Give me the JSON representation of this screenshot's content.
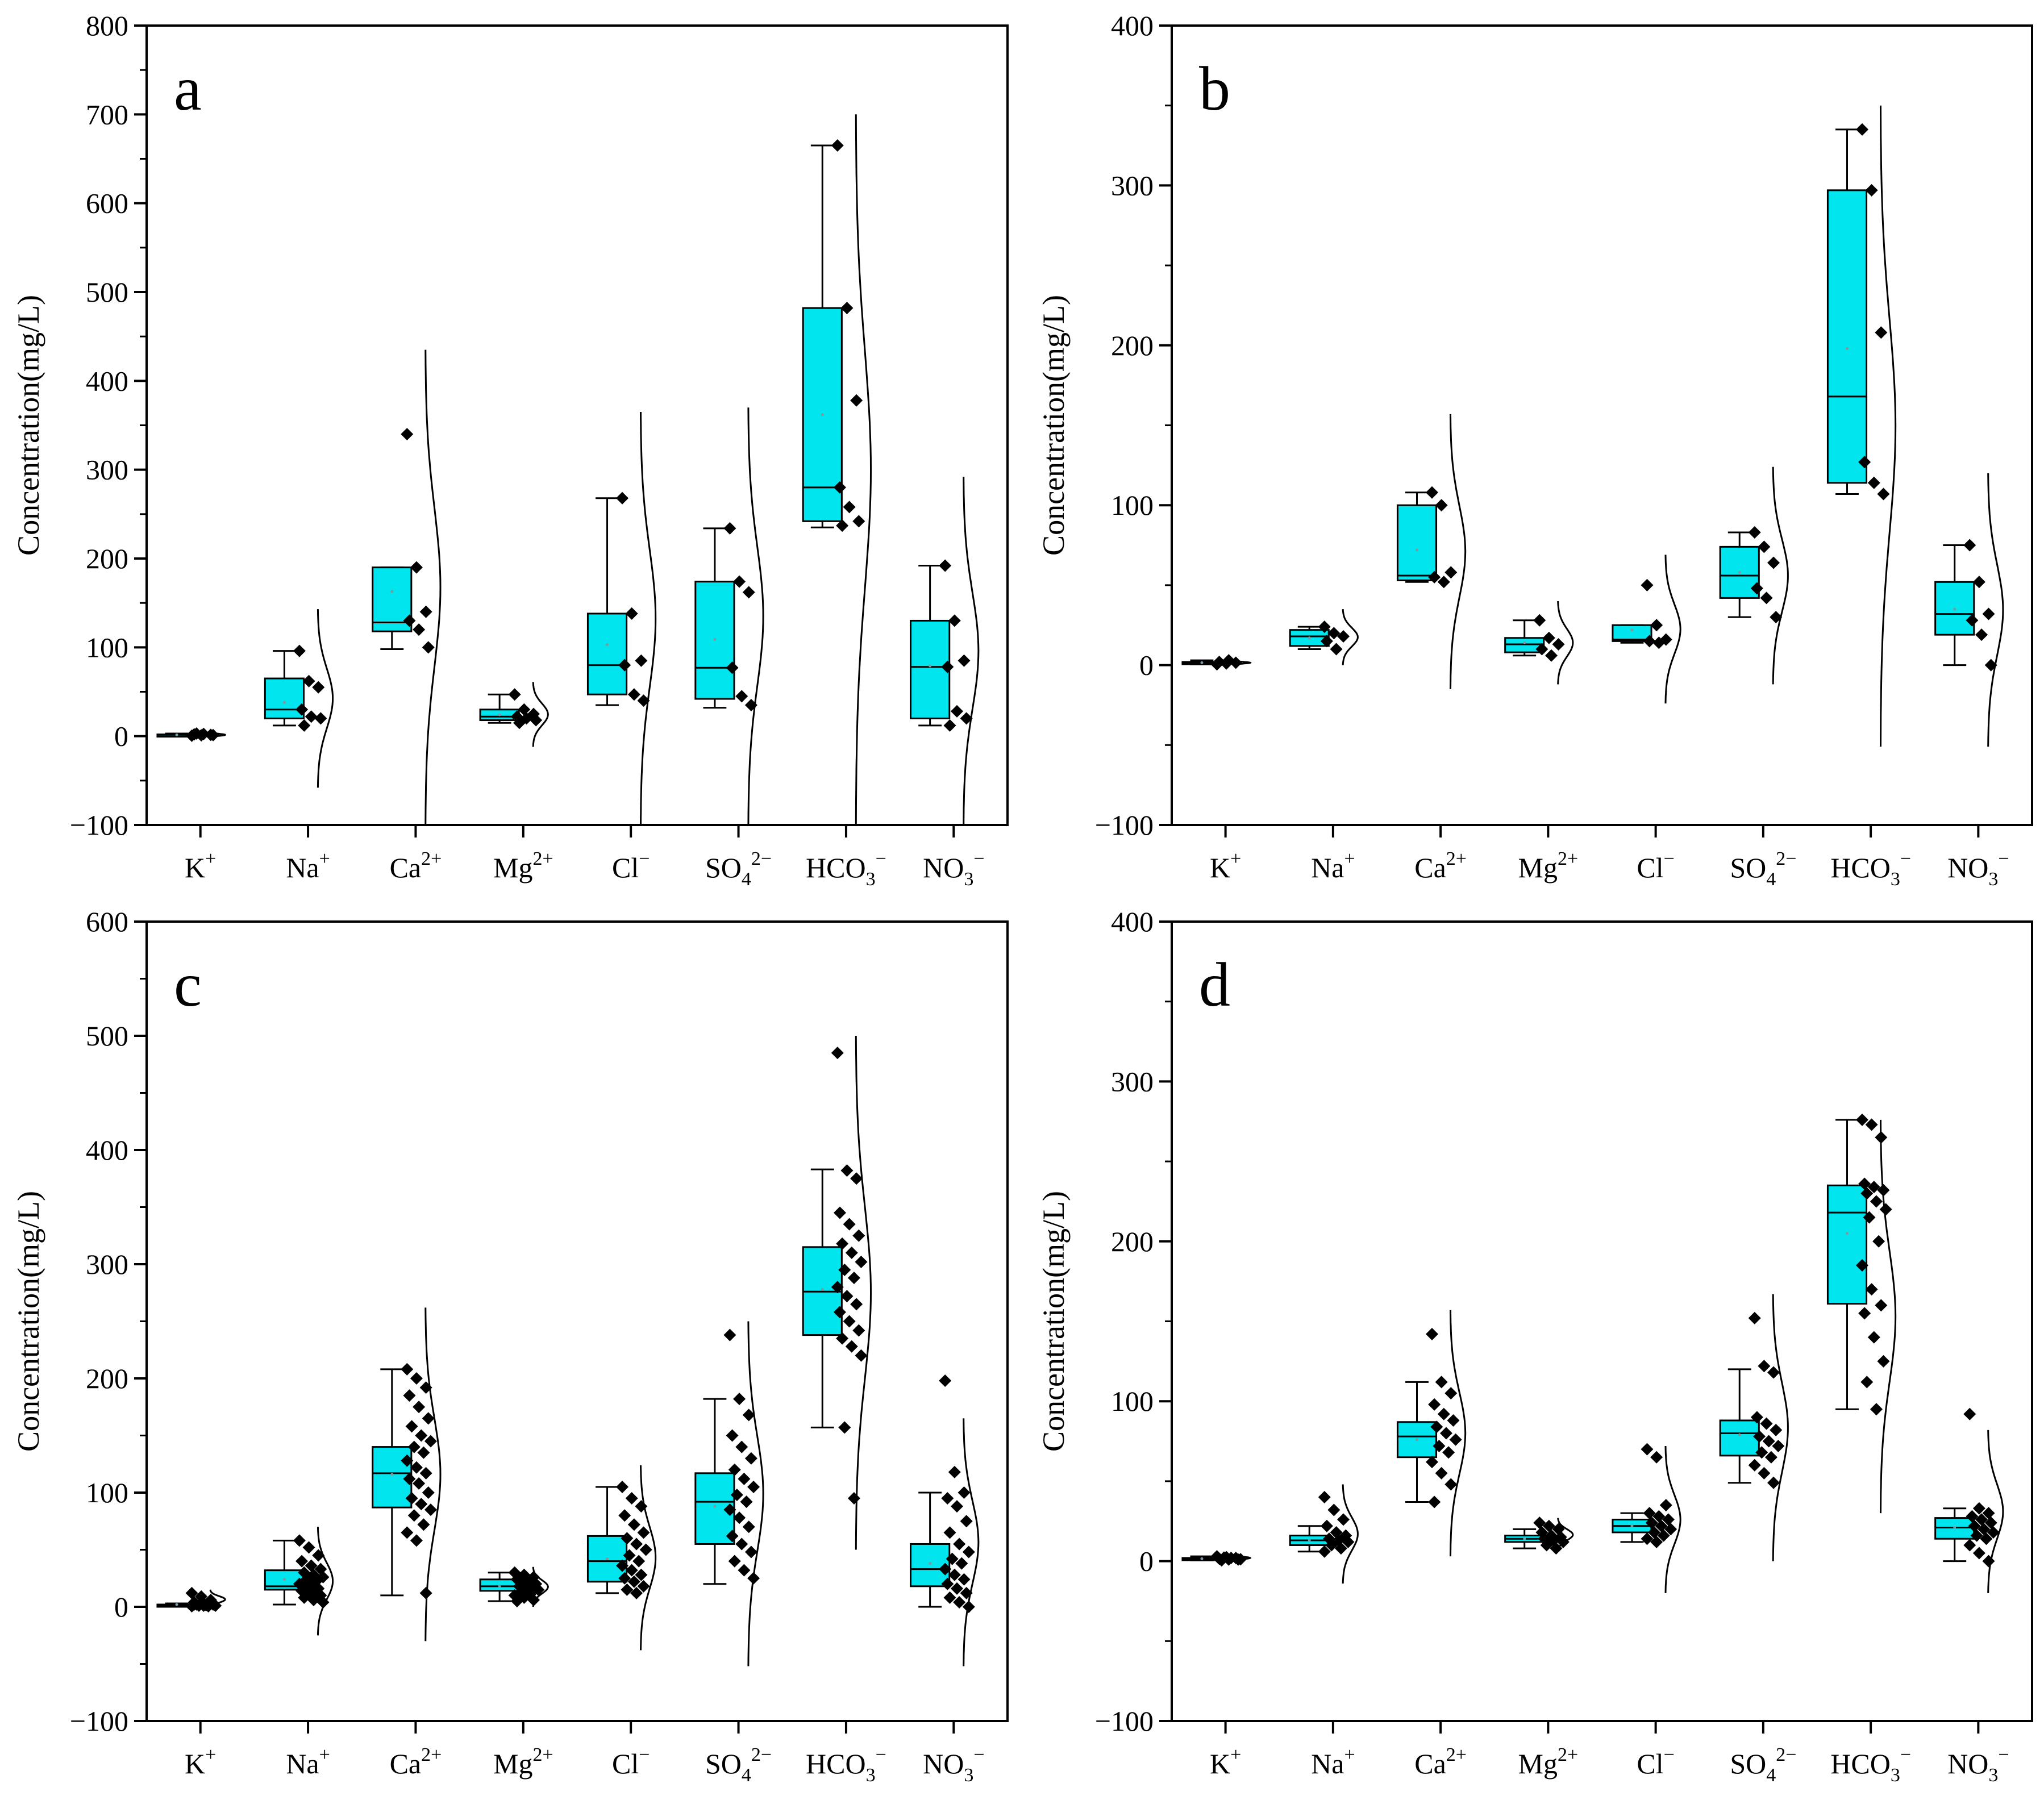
{
  "chart_data": [
    {
      "type": "box",
      "panel_label": "a",
      "ylabel": "Concentration(mg/L)",
      "ylim": [
        -100,
        800
      ],
      "yticks": [
        -100,
        0,
        100,
        200,
        300,
        400,
        500,
        600,
        700,
        800
      ],
      "categories": [
        {
          "base": "K",
          "sup": "+"
        },
        {
          "base": "Na",
          "sup": "+"
        },
        {
          "base": "Ca",
          "sup": "2+"
        },
        {
          "base": "Mg",
          "sup": "2+"
        },
        {
          "base": "Cl",
          "sup": "−"
        },
        {
          "base": "SO",
          "sub": "4",
          "sup": "2−"
        },
        {
          "base": "HCO",
          "sub": "3",
          "sup": "−"
        },
        {
          "base": "NO",
          "sub": "3",
          "sup": "−"
        }
      ],
      "boxes": [
        {
          "min": 0.5,
          "q1": 1,
          "median": 1.5,
          "q3": 2,
          "max": 3,
          "mean": 1.5,
          "points": [
            0.5,
            1,
            1.5,
            2,
            2.5,
            1.2,
            3
          ],
          "dist_min": -2,
          "dist_max": 5
        },
        {
          "min": 12,
          "q1": 20,
          "median": 30,
          "q3": 65,
          "max": 96,
          "mean": 38,
          "points": [
            96,
            62,
            55,
            30,
            22,
            20,
            12
          ],
          "dist_min": -58,
          "dist_max": 143
        },
        {
          "min": 98,
          "q1": 118,
          "median": 128,
          "q3": 190,
          "max": 190,
          "mean": 163,
          "points": [
            340,
            190,
            140,
            130,
            120,
            100
          ],
          "dist_min": -100,
          "dist_max": 435
        },
        {
          "min": 15,
          "q1": 18,
          "median": 22,
          "q3": 30,
          "max": 47,
          "mean": 24,
          "points": [
            47,
            30,
            25,
            22,
            20,
            18,
            15
          ],
          "dist_min": -12,
          "dist_max": 61
        },
        {
          "min": 35,
          "q1": 47,
          "median": 80,
          "q3": 138,
          "max": 268,
          "mean": 103,
          "points": [
            268,
            138,
            85,
            80,
            47,
            40
          ],
          "dist_min": -100,
          "dist_max": 365
        },
        {
          "min": 32,
          "q1": 42,
          "median": 77,
          "q3": 174,
          "max": 234,
          "mean": 109,
          "points": [
            234,
            174,
            162,
            77,
            45,
            35
          ],
          "dist_min": -100,
          "dist_max": 370
        },
        {
          "min": 235,
          "q1": 242,
          "median": 280,
          "q3": 482,
          "max": 665,
          "mean": 362,
          "points": [
            665,
            482,
            378,
            280,
            258,
            242,
            237
          ],
          "dist_min": -100,
          "dist_max": 700
        },
        {
          "min": 12,
          "q1": 20,
          "median": 78,
          "q3": 130,
          "max": 192,
          "mean": 79,
          "points": [
            192,
            130,
            85,
            78,
            28,
            20,
            12
          ],
          "dist_min": -100,
          "dist_max": 292
        }
      ]
    },
    {
      "type": "box",
      "panel_label": "b",
      "ylabel": "Concentration(mg/L)",
      "ylim": [
        -100,
        400
      ],
      "yticks": [
        -100,
        0,
        100,
        200,
        300,
        400
      ],
      "categories": [
        {
          "base": "K",
          "sup": "+"
        },
        {
          "base": "Na",
          "sup": "+"
        },
        {
          "base": "Ca",
          "sup": "2+"
        },
        {
          "base": "Mg",
          "sup": "2+"
        },
        {
          "base": "Cl",
          "sup": "−"
        },
        {
          "base": "SO",
          "sub": "4",
          "sup": "2−"
        },
        {
          "base": "HCO",
          "sub": "3",
          "sup": "−"
        },
        {
          "base": "NO",
          "sub": "3",
          "sup": "−"
        }
      ],
      "boxes": [
        {
          "min": 0.5,
          "q1": 1,
          "median": 1.5,
          "q3": 2,
          "max": 3,
          "mean": 1.5,
          "points": [
            0.5,
            1,
            1.5,
            2,
            3
          ],
          "dist_min": 0,
          "dist_max": 3
        },
        {
          "min": 10,
          "q1": 12,
          "median": 18,
          "q3": 22,
          "max": 24,
          "mean": 17,
          "points": [
            24,
            20,
            18,
            15,
            10
          ],
          "dist_min": 0,
          "dist_max": 35
        },
        {
          "min": 52,
          "q1": 53,
          "median": 56,
          "q3": 100,
          "max": 108,
          "mean": 72,
          "points": [
            108,
            100,
            58,
            55,
            52
          ],
          "dist_min": -15,
          "dist_max": 157
        },
        {
          "min": 6,
          "q1": 8,
          "median": 13,
          "q3": 17,
          "max": 28,
          "mean": 14,
          "points": [
            28,
            17,
            13,
            10,
            6
          ],
          "dist_min": -12,
          "dist_max": 40
        },
        {
          "min": 14,
          "q1": 15,
          "median": 16,
          "q3": 25,
          "max": 25,
          "mean": 22,
          "points": [
            50,
            25,
            16,
            15,
            14
          ],
          "dist_min": -24,
          "dist_max": 69
        },
        {
          "min": 30,
          "q1": 42,
          "median": 56,
          "q3": 74,
          "max": 83,
          "mean": 58,
          "points": [
            83,
            74,
            64,
            48,
            42,
            30
          ],
          "dist_min": -12,
          "dist_max": 124
        },
        {
          "min": 107,
          "q1": 114,
          "median": 168,
          "q3": 297,
          "max": 335,
          "mean": 198,
          "points": [
            335,
            297,
            208,
            127,
            114,
            107
          ],
          "dist_min": -51,
          "dist_max": 350
        },
        {
          "min": 0,
          "q1": 19,
          "median": 32,
          "q3": 52,
          "max": 75,
          "mean": 35,
          "points": [
            75,
            52,
            32,
            28,
            19,
            0
          ],
          "dist_min": -51,
          "dist_max": 120
        }
      ]
    },
    {
      "type": "box",
      "panel_label": "c",
      "ylabel": "Concentration(mg/L)",
      "ylim": [
        -100,
        600
      ],
      "yticks": [
        -100,
        0,
        100,
        200,
        300,
        400,
        500,
        600
      ],
      "categories": [
        {
          "base": "K",
          "sup": "+"
        },
        {
          "base": "Na",
          "sup": "+"
        },
        {
          "base": "Ca",
          "sup": "2+"
        },
        {
          "base": "Mg",
          "sup": "2+"
        },
        {
          "base": "Cl",
          "sup": "−"
        },
        {
          "base": "SO",
          "sub": "4",
          "sup": "2−"
        },
        {
          "base": "HCO",
          "sub": "3",
          "sup": "−"
        },
        {
          "base": "NO",
          "sub": "3",
          "sup": "−"
        }
      ],
      "boxes": [
        {
          "min": 0.5,
          "q1": 1,
          "median": 1.5,
          "q3": 2,
          "max": 3,
          "mean": 2,
          "points": [
            12,
            9,
            6,
            4,
            3,
            2,
            2,
            1.5,
            1,
            1,
            0.5,
            0.5,
            3,
            5,
            2,
            1
          ],
          "dist_min": -2,
          "dist_max": 15
        },
        {
          "min": 2,
          "q1": 15,
          "median": 18,
          "q3": 32,
          "max": 58,
          "mean": 24,
          "points": [
            58,
            52,
            45,
            40,
            36,
            33,
            30,
            28,
            26,
            24,
            22,
            20,
            18,
            16,
            14,
            12,
            10,
            8,
            6,
            4
          ],
          "dist_min": -25,
          "dist_max": 70
        },
        {
          "min": 10,
          "q1": 87,
          "median": 117,
          "q3": 140,
          "max": 208,
          "mean": 116,
          "points": [
            208,
            200,
            192,
            185,
            175,
            165,
            158,
            150,
            145,
            140,
            135,
            128,
            122,
            117,
            112,
            108,
            100,
            95,
            90,
            85,
            80,
            72,
            65,
            58,
            12
          ],
          "dist_min": -30,
          "dist_max": 262
        },
        {
          "min": 5,
          "q1": 14,
          "median": 18,
          "q3": 24,
          "max": 30,
          "mean": 18,
          "points": [
            30,
            28,
            26,
            24,
            22,
            20,
            18,
            17,
            15,
            14,
            12,
            10,
            8,
            6,
            5
          ],
          "dist_min": 0,
          "dist_max": 35
        },
        {
          "min": 12,
          "q1": 22,
          "median": 40,
          "q3": 62,
          "max": 105,
          "mean": 42,
          "points": [
            105,
            95,
            88,
            80,
            72,
            65,
            60,
            55,
            50,
            45,
            40,
            36,
            32,
            28,
            25,
            22,
            18,
            15,
            12
          ],
          "dist_min": -38,
          "dist_max": 124
        },
        {
          "min": 20,
          "q1": 55,
          "median": 92,
          "q3": 117,
          "max": 182,
          "mean": 88,
          "points": [
            238,
            182,
            168,
            150,
            140,
            130,
            120,
            112,
            105,
            98,
            92,
            85,
            78,
            70,
            62,
            55,
            48,
            40,
            32,
            25
          ],
          "dist_min": -52,
          "dist_max": 250
        },
        {
          "min": 157,
          "q1": 238,
          "median": 276,
          "q3": 315,
          "max": 383,
          "mean": 278,
          "points": [
            485,
            382,
            375,
            345,
            335,
            325,
            318,
            310,
            302,
            295,
            288,
            280,
            272,
            265,
            258,
            250,
            242,
            235,
            228,
            220,
            157,
            95
          ],
          "dist_min": 50,
          "dist_max": 500
        },
        {
          "min": 0,
          "q1": 18,
          "median": 33,
          "q3": 55,
          "max": 100,
          "mean": 38,
          "points": [
            198,
            118,
            100,
            95,
            88,
            75,
            65,
            55,
            48,
            42,
            38,
            33,
            28,
            24,
            20,
            16,
            12,
            8,
            4,
            0
          ],
          "dist_min": -52,
          "dist_max": 165
        }
      ]
    },
    {
      "type": "box",
      "panel_label": "d",
      "ylabel": "Concentration(mg/L)",
      "ylim": [
        -100,
        400
      ],
      "yticks": [
        -100,
        0,
        100,
        200,
        300,
        400
      ],
      "categories": [
        {
          "base": "K",
          "sup": "+"
        },
        {
          "base": "Na",
          "sup": "+"
        },
        {
          "base": "Ca",
          "sup": "2+"
        },
        {
          "base": "Mg",
          "sup": "2+"
        },
        {
          "base": "Cl",
          "sup": "−"
        },
        {
          "base": "SO",
          "sub": "4",
          "sup": "2−"
        },
        {
          "base": "HCO",
          "sub": "3",
          "sup": "−"
        },
        {
          "base": "NO",
          "sub": "3",
          "sup": "−"
        }
      ],
      "boxes": [
        {
          "min": 0.5,
          "q1": 1,
          "median": 1.5,
          "q3": 2,
          "max": 3,
          "mean": 1.5,
          "points": [
            3,
            2.5,
            2,
            1.5,
            1,
            1,
            0.5,
            2,
            1.2,
            2.2
          ],
          "dist_min": 0,
          "dist_max": 4
        },
        {
          "min": 6,
          "q1": 10,
          "median": 13,
          "q3": 16,
          "max": 22,
          "mean": 13,
          "points": [
            40,
            32,
            26,
            22,
            18,
            16,
            14,
            13,
            12,
            10,
            8,
            6
          ],
          "dist_min": -14,
          "dist_max": 48
        },
        {
          "min": 37,
          "q1": 65,
          "median": 78,
          "q3": 87,
          "max": 112,
          "mean": 76,
          "points": [
            142,
            112,
            105,
            98,
            92,
            88,
            84,
            80,
            76,
            72,
            68,
            62,
            55,
            48,
            37
          ],
          "dist_min": 3,
          "dist_max": 157
        },
        {
          "min": 8,
          "q1": 12,
          "median": 14,
          "q3": 16,
          "max": 20,
          "mean": 14,
          "points": [
            24,
            22,
            20,
            18,
            16,
            15,
            14,
            13,
            12,
            10,
            8
          ],
          "dist_min": 6,
          "dist_max": 27
        },
        {
          "min": 12,
          "q1": 18,
          "median": 22,
          "q3": 26,
          "max": 30,
          "mean": 22,
          "points": [
            70,
            65,
            35,
            30,
            28,
            26,
            24,
            22,
            20,
            18,
            16,
            14,
            12
          ],
          "dist_min": -20,
          "dist_max": 72
        },
        {
          "min": 49,
          "q1": 66,
          "median": 80,
          "q3": 88,
          "max": 120,
          "mean": 79,
          "points": [
            152,
            122,
            118,
            90,
            86,
            82,
            78,
            75,
            72,
            68,
            65,
            60,
            55,
            49
          ],
          "dist_min": 0,
          "dist_max": 167
        },
        {
          "min": 95,
          "q1": 161,
          "median": 218,
          "q3": 235,
          "max": 276,
          "mean": 205,
          "points": [
            276,
            273,
            265,
            236,
            234,
            232,
            230,
            225,
            220,
            215,
            200,
            185,
            170,
            160,
            155,
            140,
            125,
            112,
            95
          ],
          "dist_min": 30,
          "dist_max": 276
        },
        {
          "min": 0,
          "q1": 14,
          "median": 21,
          "q3": 27,
          "max": 33,
          "mean": 21,
          "points": [
            92,
            33,
            30,
            28,
            26,
            24,
            22,
            20,
            18,
            16,
            14,
            10,
            5,
            0
          ],
          "dist_min": -20,
          "dist_max": 82
        }
      ]
    }
  ],
  "style": {
    "box_fill": "#00E5EE",
    "stroke": "#000000",
    "background": "#ffffff"
  }
}
